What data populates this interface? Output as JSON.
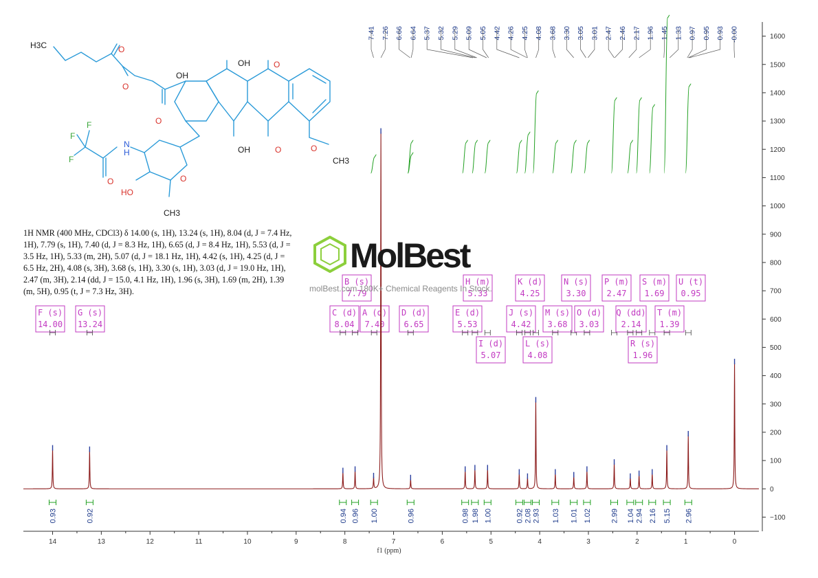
{
  "chart_data": {
    "type": "line",
    "title": "",
    "xlabel": "f1 (ppm)",
    "ylabel": "",
    "xlim": [
      14.6,
      -0.5
    ],
    "ylim": [
      -150,
      1650
    ],
    "x_ticks": [
      "14",
      "13",
      "12",
      "11",
      "10",
      "9",
      "8",
      "7",
      "6",
      "5",
      "4",
      "3",
      "2",
      "1",
      "0"
    ],
    "y_ticks": [
      "1600",
      "1500",
      "1400",
      "1300",
      "1200",
      "1100",
      "1000",
      "900",
      "800",
      "700",
      "600",
      "500",
      "400",
      "300",
      "200",
      "100",
      "0",
      "-100"
    ],
    "peak_labels": [
      "7.41",
      "7.26",
      "6.66",
      "6.64",
      "5.37",
      "5.32",
      "5.29",
      "5.09",
      "5.05",
      "4.42",
      "4.26",
      "4.25",
      "4.08",
      "3.68",
      "3.30",
      "3.05",
      "3.01",
      "2.47",
      "2.46",
      "2.17",
      "1.96",
      "1.45",
      "1.33",
      "0.97",
      "0.95",
      "0.93",
      "-0.00"
    ],
    "peaks": [
      {
        "ppm": 14.0,
        "h": 140
      },
      {
        "ppm": 13.24,
        "h": 135
      },
      {
        "ppm": 8.04,
        "h": 60
      },
      {
        "ppm": 7.79,
        "h": 65
      },
      {
        "ppm": 7.41,
        "h": 42
      },
      {
        "ppm": 7.26,
        "h": 1260
      },
      {
        "ppm": 6.65,
        "h": 35
      },
      {
        "ppm": 5.53,
        "h": 65
      },
      {
        "ppm": 5.33,
        "h": 70
      },
      {
        "ppm": 5.07,
        "h": 70
      },
      {
        "ppm": 4.42,
        "h": 55
      },
      {
        "ppm": 4.25,
        "h": 40
      },
      {
        "ppm": 4.08,
        "h": 310
      },
      {
        "ppm": 3.68,
        "h": 55
      },
      {
        "ppm": 3.3,
        "h": 45
      },
      {
        "ppm": 3.03,
        "h": 65
      },
      {
        "ppm": 2.47,
        "h": 90
      },
      {
        "ppm": 2.14,
        "h": 40
      },
      {
        "ppm": 1.96,
        "h": 50
      },
      {
        "ppm": 1.69,
        "h": 55
      },
      {
        "ppm": 1.39,
        "h": 140
      },
      {
        "ppm": 0.95,
        "h": 190
      },
      {
        "ppm": 0.0,
        "h": 445
      }
    ],
    "multiplets": [
      {
        "label": "F (s)",
        "value": "14.00",
        "ppm": 14.0
      },
      {
        "label": "G (s)",
        "value": "13.24",
        "ppm": 13.24
      },
      {
        "label": "C (d)",
        "value": "8.04",
        "ppm": 8.04
      },
      {
        "label": "B (s)",
        "value": "7.79",
        "ppm": 7.79
      },
      {
        "label": "A (d)",
        "value": "7.40",
        "ppm": 7.4
      },
      {
        "label": "D (d)",
        "value": "6.65",
        "ppm": 6.65
      },
      {
        "label": "E (d)",
        "value": "5.53",
        "ppm": 5.53
      },
      {
        "label": "H (m)",
        "value": "5.33",
        "ppm": 5.33
      },
      {
        "label": "I (d)",
        "value": "5.07",
        "ppm": 5.07
      },
      {
        "label": "J (s)",
        "value": "4.42",
        "ppm": 4.42
      },
      {
        "label": "K (d)",
        "value": "4.25",
        "ppm": 4.25
      },
      {
        "label": "L (s)",
        "value": "4.08",
        "ppm": 4.08
      },
      {
        "label": "M (s)",
        "value": "3.68",
        "ppm": 3.68
      },
      {
        "label": "N (s)",
        "value": "3.30",
        "ppm": 3.3
      },
      {
        "label": "O (d)",
        "value": "3.03",
        "ppm": 3.03
      },
      {
        "label": "P (m)",
        "value": "2.47",
        "ppm": 2.47
      },
      {
        "label": "Q (dd)",
        "value": "2.14",
        "ppm": 2.14
      },
      {
        "label": "R (s)",
        "value": "1.96",
        "ppm": 1.96
      },
      {
        "label": "S (m)",
        "value": "1.69",
        "ppm": 1.69
      },
      {
        "label": "T (m)",
        "value": "1.39",
        "ppm": 1.39
      },
      {
        "label": "U (t)",
        "value": "0.95",
        "ppm": 0.95
      }
    ],
    "integrals": [
      {
        "ppm": 14.0,
        "value": "0.93"
      },
      {
        "ppm": 13.24,
        "value": "0.92"
      },
      {
        "ppm": 8.04,
        "value": "0.94"
      },
      {
        "ppm": 7.79,
        "value": "0.96"
      },
      {
        "ppm": 7.4,
        "value": "1.00"
      },
      {
        "ppm": 6.65,
        "value": "0.96"
      },
      {
        "ppm": 5.53,
        "value": "0.98"
      },
      {
        "ppm": 5.33,
        "value": "1.98"
      },
      {
        "ppm": 5.07,
        "value": "1.00"
      },
      {
        "ppm": 4.42,
        "value": "0.92"
      },
      {
        "ppm": 4.25,
        "value": "2.08"
      },
      {
        "ppm": 4.08,
        "value": "2.93"
      },
      {
        "ppm": 3.68,
        "value": "1.03"
      },
      {
        "ppm": 3.3,
        "value": "1.01"
      },
      {
        "ppm": 3.03,
        "value": "1.02"
      },
      {
        "ppm": 2.47,
        "value": "2.99"
      },
      {
        "ppm": 2.14,
        "value": "1.04"
      },
      {
        "ppm": 1.96,
        "value": "2.94"
      },
      {
        "ppm": 1.69,
        "value": "2.16"
      },
      {
        "ppm": 1.39,
        "value": "5.15"
      },
      {
        "ppm": 0.95,
        "value": "2.96"
      }
    ]
  },
  "nmr_description": [
    "1H NMR (400 MHz, CDCl3) δ 14.00 (s, 1H), 13.24 (s, 1H), 8.04 (d, J = 7.4 Hz,",
    "1H), 7.79 (s, 1H), 7.40 (d, J = 8.3 Hz, 1H), 6.65 (d, J = 8.4 Hz, 1H), 5.53 (d, J =",
    "3.5 Hz, 1H), 5.33 (m, 2H), 5.07 (d, J = 18.1 Hz, 1H), 4.42 (s, 1H), 4.25 (d, J =",
    "6.5 Hz, 2H), 4.08 (s, 3H), 3.68 (s, 1H), 3.30 (s, 1H), 3.03 (d, J = 19.0 Hz, 1H),",
    "2.47 (m, 3H), 2.14 (dd, J = 15.0, 4.1 Hz, 1H), 1.96 (s, 3H), 1.69 (m, 2H), 1.39",
    "(m, 5H), 0.95 (t, J = 7.3 Hz, 3H)."
  ],
  "structure_labels": [
    "H3C",
    "OH",
    "OH",
    "O",
    "O",
    "O",
    "O",
    "OH",
    "O",
    "O",
    "CH3",
    "F",
    "F",
    "F",
    "N",
    "H",
    "O",
    "HO",
    "O",
    "CH3"
  ],
  "watermark": {
    "brand": "MolBest",
    "tagline": "molBest.com 180K+ Chemical Reagents In Stock."
  },
  "colors": {
    "spectrum": "#8b1a1a",
    "peak_label": "#1f3c8c",
    "integral_curve": "#22a022",
    "integral_value": "#1f3c8c",
    "multiplet_box": "#c23ac2",
    "structure": "#2a9ad8",
    "axis": "#333333"
  }
}
